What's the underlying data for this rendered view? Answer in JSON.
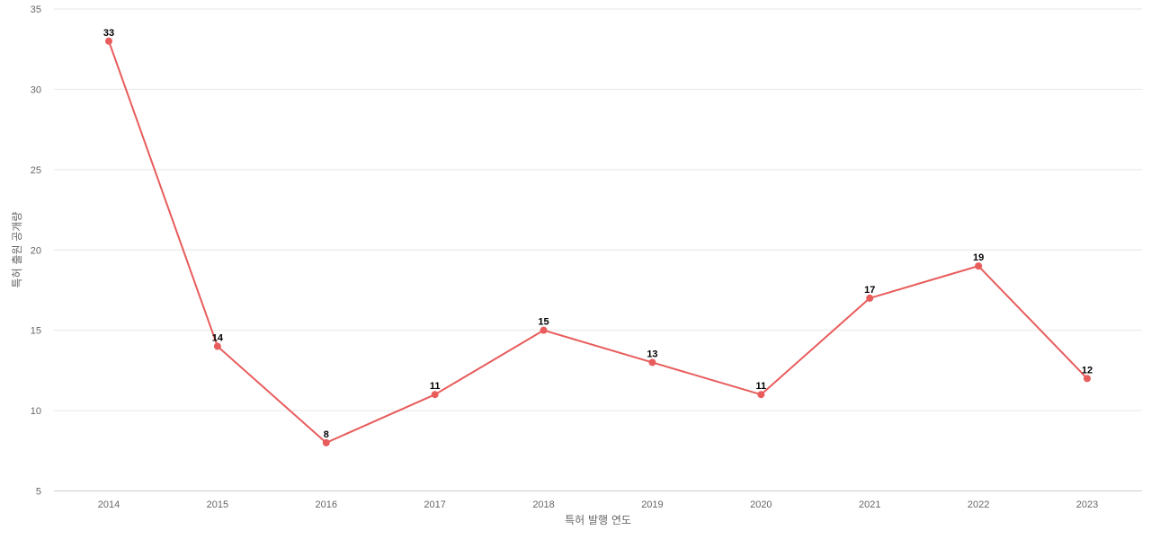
{
  "chart_data": {
    "type": "line",
    "title": "",
    "xlabel": "특허 발행 연도",
    "ylabel": "특허 출원 공개량",
    "categories": [
      "2014",
      "2015",
      "2016",
      "2017",
      "2018",
      "2019",
      "2020",
      "2021",
      "2022",
      "2023"
    ],
    "series": [
      {
        "values": [
          33,
          14,
          8,
          11,
          15,
          13,
          11,
          17,
          19,
          12
        ],
        "color": "#e85c5c"
      }
    ],
    "ylim": [
      5,
      35
    ],
    "yticks": [
      5,
      10,
      15,
      20,
      25,
      30,
      35
    ],
    "grid": true,
    "data_labels": true
  }
}
